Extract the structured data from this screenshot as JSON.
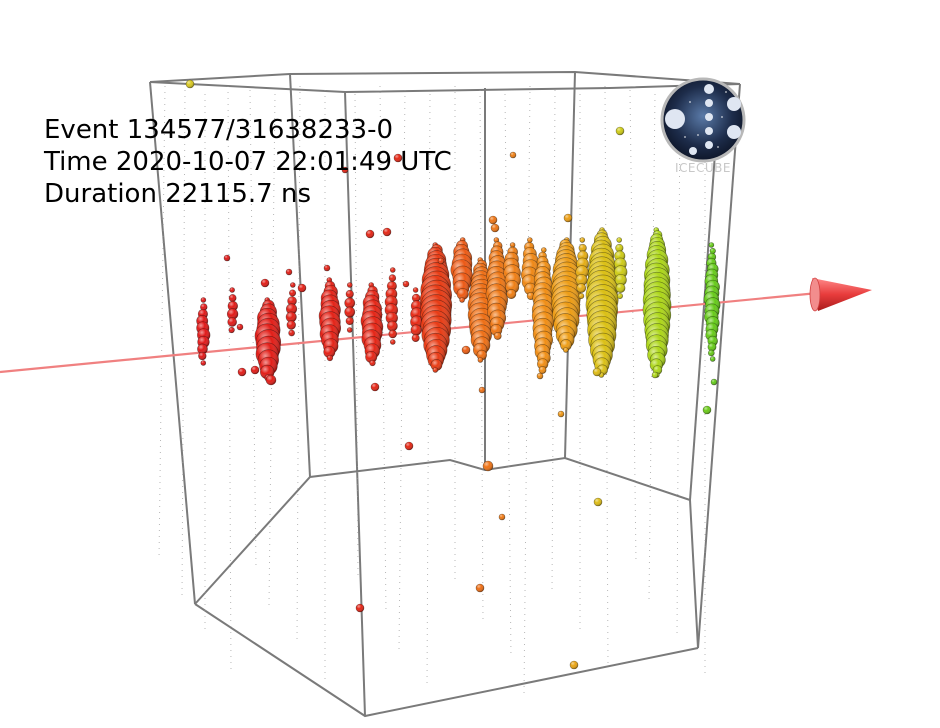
{
  "event_info": {
    "event_line": "Event 134577/31638233-0",
    "time_line": "Time 2020-10-07 22:01:49 UTC",
    "duration_line": "Duration 22115.7 ns"
  },
  "logo": {
    "label": "ICECUBE"
  },
  "colors": {
    "background": "#ffffff",
    "detector_outline": "#7a7a7a",
    "track_line": "#f08080",
    "track_arrow": "#e83c3c",
    "early_hits": "#e01818",
    "mid_hits": "#f08a10",
    "late_hits": "#a8d818",
    "latest_hits": "#58c818"
  },
  "icons": [
    "icecube-logo-icon",
    "track-arrow-icon"
  ]
}
